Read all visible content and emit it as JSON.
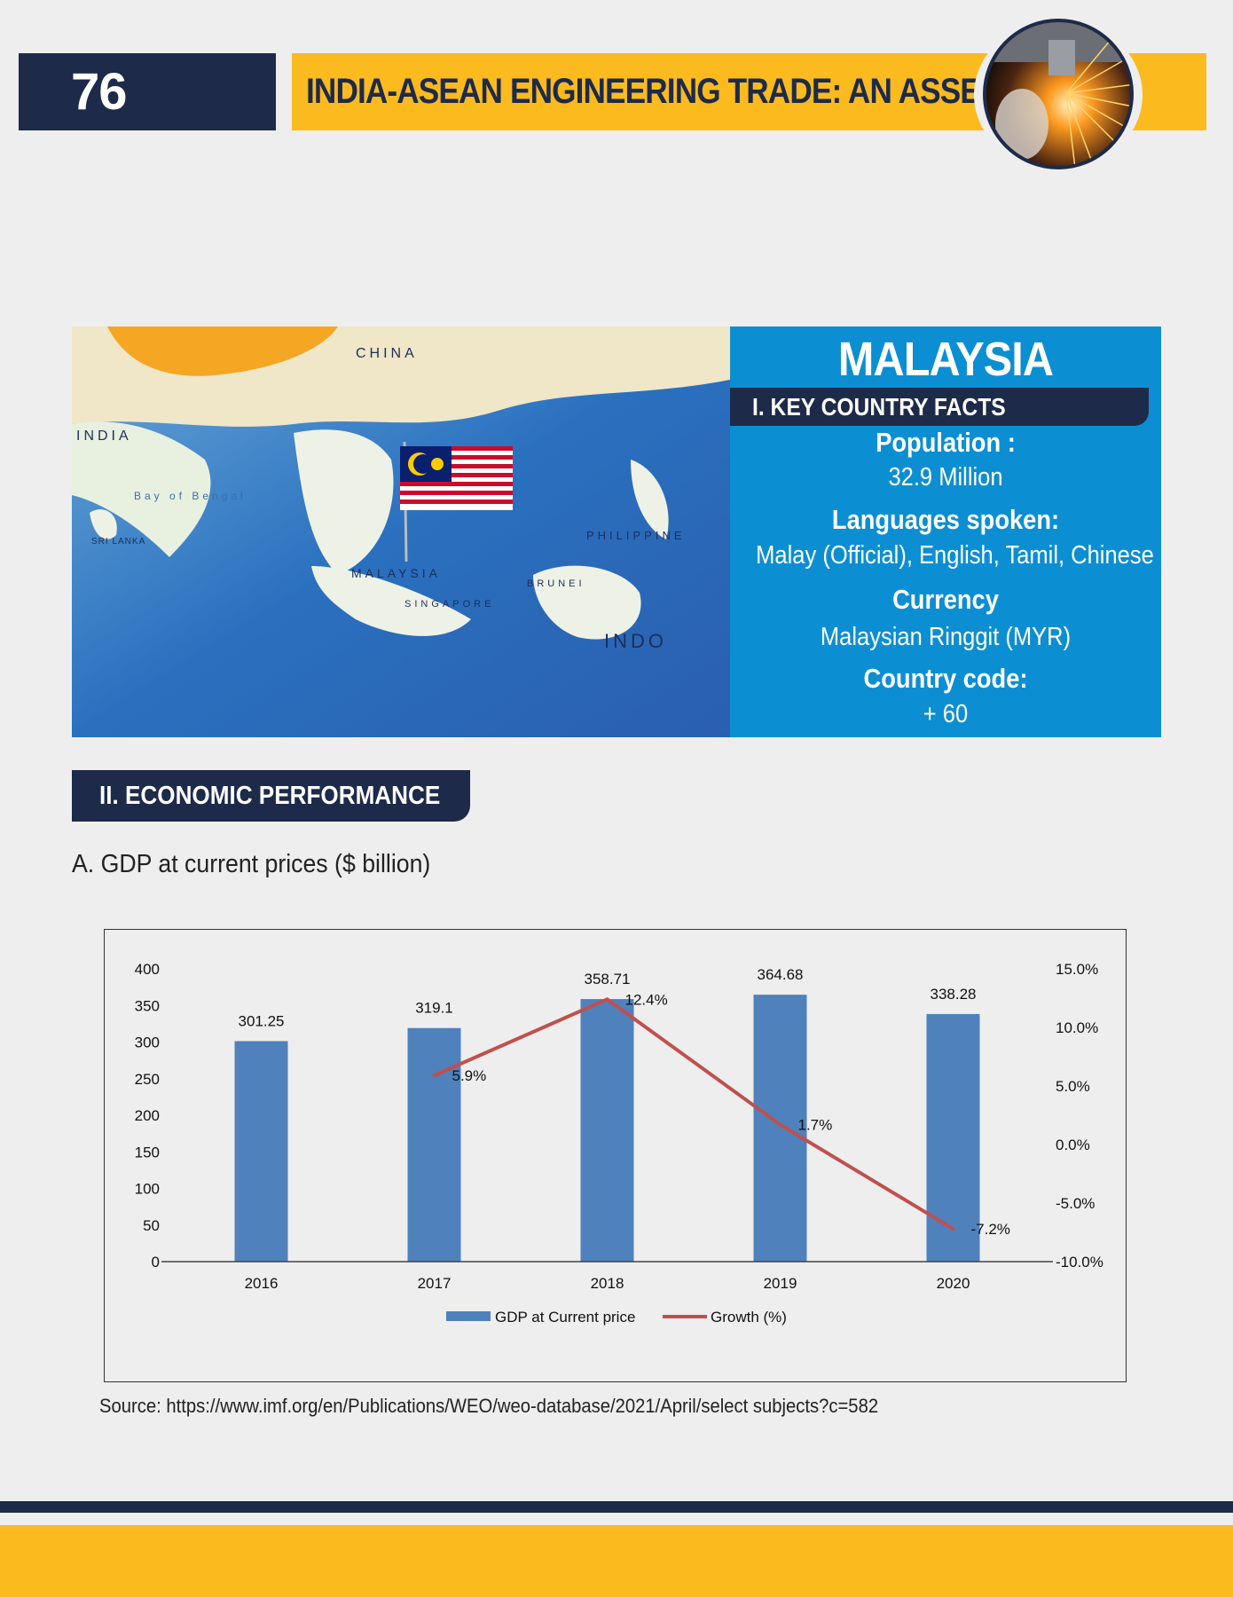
{
  "header": {
    "page_number": "76",
    "title": "INDIA-ASEAN ENGINEERING TRADE: AN ASSESSMENT",
    "badge_icon": "sparks-grinding-icon"
  },
  "country": {
    "name": "MALAYSIA",
    "facts_heading": "I. KEY COUNTRY FACTS",
    "facts": [
      {
        "label": "Population :",
        "value": "32.9 Million"
      },
      {
        "label": "Languages spoken:",
        "value": "Malay (Official), English, Tamil, Chinese"
      },
      {
        "label": "Currency",
        "value": "Malaysian Ringgit (MYR)"
      },
      {
        "label": "Country code:",
        "value": "+ 60"
      }
    ],
    "map_labels": {
      "india": "INDIA",
      "china": "CHINA",
      "bay": "Bay of Bengal",
      "sri_lanka": "SRI LANKA",
      "malaysia": "MALAYSIA",
      "singapore": "SINGAPORE",
      "brunei": "BRUNEI",
      "philippines": "PHILIPPINE",
      "indonesia": "INDO"
    }
  },
  "section": {
    "heading": "II. ECONOMIC PERFORMANCE",
    "subheading": "A. GDP at current prices ($ billion)"
  },
  "chart_data": {
    "type": "bar",
    "categories": [
      "2016",
      "2017",
      "2018",
      "2019",
      "2020"
    ],
    "series": [
      {
        "name": "GDP at Current price",
        "type": "bar",
        "axis": "left",
        "color": "#4f81bd",
        "values": [
          301.25,
          319.1,
          358.71,
          364.68,
          338.28
        ],
        "labels": [
          "301.25",
          "319.1",
          "358.71",
          "364.68",
          "338.28"
        ]
      },
      {
        "name": "Growth (%)",
        "type": "line",
        "axis": "right",
        "color": "#c0504d",
        "values": [
          null,
          5.9,
          12.4,
          1.7,
          -7.2
        ],
        "labels": [
          "",
          "5.9%",
          "12.4%",
          "1.7%",
          "-7.2%"
        ]
      }
    ],
    "left_axis": {
      "ylim": [
        0,
        400
      ],
      "ticks": [
        "0",
        "50",
        "100",
        "150",
        "200",
        "250",
        "300",
        "350",
        "400"
      ]
    },
    "right_axis": {
      "ylim": [
        -10,
        15
      ],
      "ticks": [
        "-10.0%",
        "-5.0%",
        "0.0%",
        "5.0%",
        "10.0%",
        "15.0%"
      ]
    },
    "legend_position": "bottom",
    "grid": false
  },
  "source": "Source: https://www.imf.org/en/Publications/WEO/weo-database/2021/April/select subjects?c=582",
  "colors": {
    "navy": "#1e2a4a",
    "yellow": "#fbba1e",
    "blue": "#0c8ed3",
    "bar": "#4f81bd",
    "line": "#c0504d"
  }
}
